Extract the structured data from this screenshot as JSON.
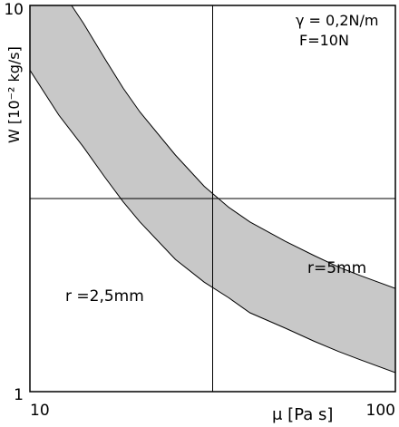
{
  "chart_data": {
    "type": "area",
    "xscale": "log",
    "yscale": "log",
    "xlim": [
      10,
      100
    ],
    "ylim": [
      1,
      10
    ],
    "grid": true,
    "xlabel": "μ [Pa s]",
    "ylabel": "W [10⁻² kg/s]",
    "xticks": [
      "10",
      "100"
    ],
    "yticks": [
      "10",
      "1"
    ],
    "annotations": {
      "gamma": "γ = 0,2N/m",
      "force": "F=10N",
      "r_small": "r =2,5mm",
      "r_large": "r=5mm"
    },
    "fill_color": "#c8c8c8",
    "series": [
      {
        "name": "r=5mm",
        "x": [
          13,
          14,
          16,
          18,
          20,
          25,
          30,
          35,
          40,
          50,
          60,
          70,
          80,
          100
        ],
        "y": [
          10,
          9.0,
          7.3,
          6.1,
          5.3,
          4.1,
          3.4,
          3.0,
          2.75,
          2.45,
          2.25,
          2.1,
          2.0,
          1.85
        ]
      },
      {
        "name": "r =2,5mm",
        "x": [
          10,
          12,
          14,
          16,
          18,
          20,
          25,
          30,
          35,
          40,
          50,
          60,
          70,
          80,
          100
        ],
        "y": [
          6.8,
          5.2,
          4.3,
          3.6,
          3.1,
          2.75,
          2.2,
          1.92,
          1.75,
          1.6,
          1.46,
          1.35,
          1.27,
          1.21,
          1.12
        ]
      }
    ]
  }
}
